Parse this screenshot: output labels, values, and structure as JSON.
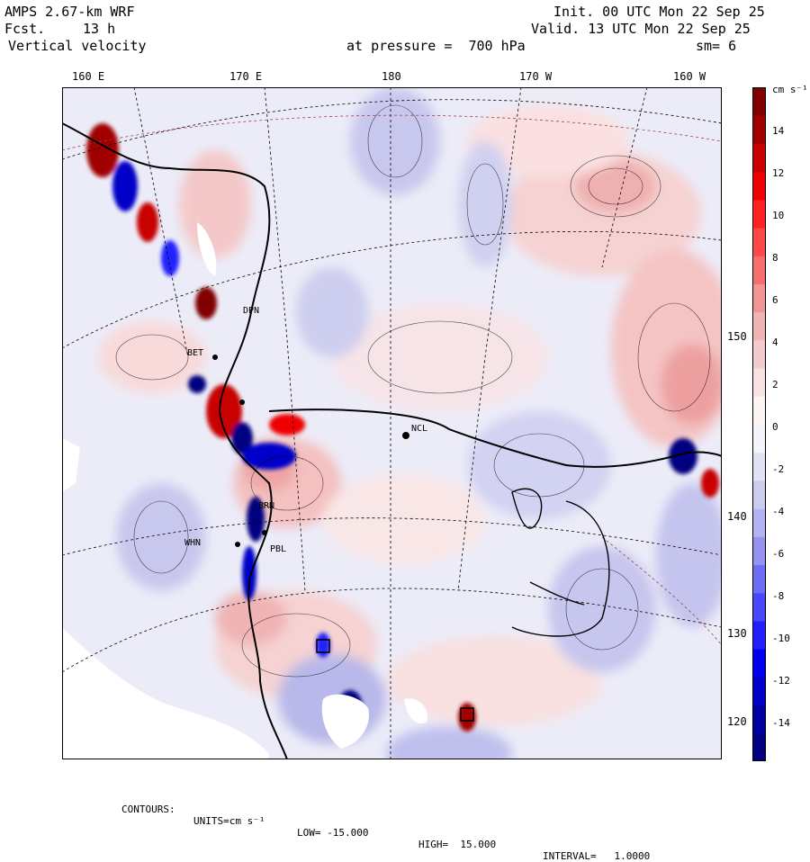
{
  "header": {
    "model": "AMPS 2.67-km WRF",
    "fcst_label": "Fcst.",
    "fcst_value": "13 h",
    "field": "Vertical velocity",
    "level": "at pressure =  700 hPa",
    "init": "Init. 00 UTC Mon 22 Sep 25",
    "valid": "Valid. 13 UTC Mon 22 Sep 25",
    "smoothing": "sm= 6"
  },
  "lon_labels": [
    "160 E",
    "170 E",
    "180",
    "170 W",
    "160 W"
  ],
  "lat_labels": [
    "150 W",
    "140 W",
    "130 W",
    "120 W"
  ],
  "stations": [
    "NCL",
    "DPN",
    "BET",
    "WHN",
    "BRN",
    "PBL"
  ],
  "colorbar": {
    "units": "cm s⁻¹",
    "ticks": [
      "14",
      "12",
      "10",
      "8",
      "6",
      "4",
      "2",
      "0",
      "-2",
      "-4",
      "-6",
      "-8",
      "-10",
      "-12",
      "-14"
    ],
    "colors": [
      "#000080",
      "#0000a0",
      "#0000c8",
      "#0000ee",
      "#2020ff",
      "#4848ff",
      "#6e6ef4",
      "#9494f0",
      "#b4b4f4",
      "#cccced",
      "#e2e2f6",
      "#f4f4fb",
      "#fdf4f4",
      "#f8e2e2",
      "#f2cccc",
      "#f0b4b4",
      "#f09494",
      "#f46e6e",
      "#ff4848",
      "#ff2020",
      "#ee0000",
      "#c80000",
      "#a00000",
      "#800000"
    ]
  },
  "footer": {
    "contours_label": "CONTOURS:",
    "units": "UNITS=cm s⁻¹",
    "low": "LOW= -15.000",
    "high": "HIGH=  15.000",
    "interval": "INTERVAL=   1.0000"
  }
}
